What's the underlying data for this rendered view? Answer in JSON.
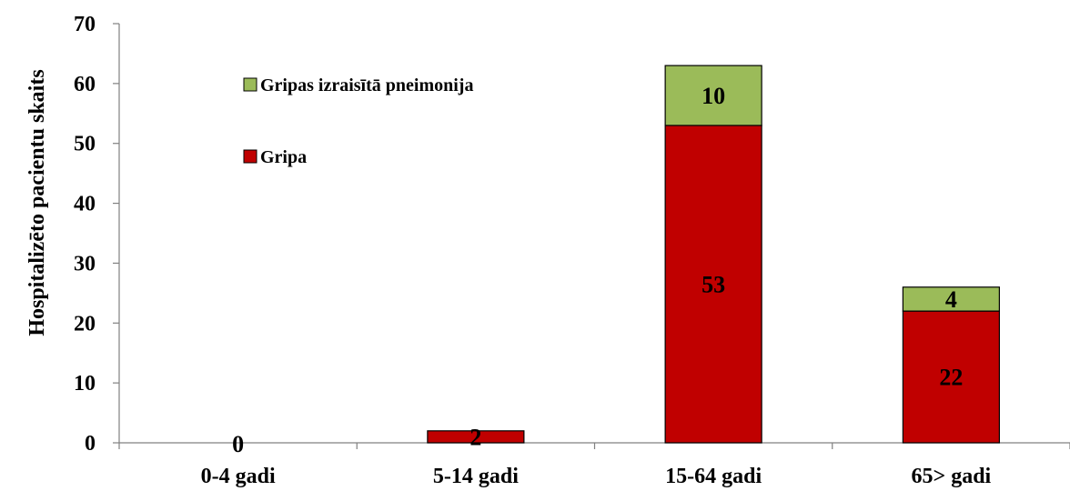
{
  "chart_data": {
    "type": "bar",
    "stacked": true,
    "categories": [
      "0-4 gadi",
      "5-14 gadi",
      "15-64 gadi",
      "65> gadi"
    ],
    "series": [
      {
        "name": "Gripa",
        "values": [
          0,
          2,
          53,
          22
        ],
        "color": "#c00000",
        "labels": [
          "0",
          "2",
          "53",
          "22"
        ]
      },
      {
        "name": "Gripas izraisītā pneimonija",
        "values": [
          0,
          0,
          10,
          4
        ],
        "color": "#9bbb59",
        "labels": [
          "",
          "",
          "10",
          "4"
        ]
      }
    ],
    "ylabel": "Hospitalizēto pacientu skaits",
    "xlabel": "",
    "ylim": [
      0,
      70
    ],
    "yticks": [
      0,
      10,
      20,
      30,
      40,
      50,
      60,
      70
    ],
    "legend": {
      "position": "top-left",
      "order": [
        "Gripas izraisītā pneimonija",
        "Gripa"
      ]
    },
    "grid": false
  }
}
